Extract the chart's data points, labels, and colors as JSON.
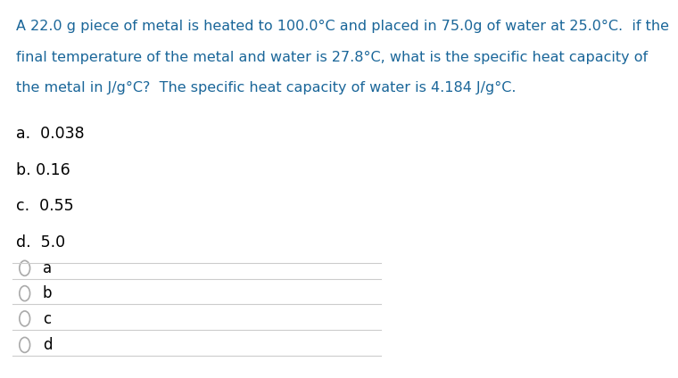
{
  "question_line1": "A 22.0 g piece of metal is heated to 100.0°C and placed in 75.0g of water at 25.0°C.  if the",
  "question_line2": "final temperature of the metal and water is 27.8°C, what is the specific heat capacity of",
  "question_line3": "the metal in J/g°C?  The specific heat capacity of water is 4.184 J/g°C.",
  "option_a": "a.  0.038",
  "option_b": "b. 0.16",
  "option_c": "c.  0.55",
  "option_d": "d.  5.0",
  "radio_options": [
    "a",
    "b",
    "c",
    "d"
  ],
  "question_color": "#1a6699",
  "option_color": "#000000",
  "radio_color": "#aaaaaa",
  "background_color": "#ffffff",
  "separator_color": "#cccccc",
  "font_size_question": 11.5,
  "font_size_options": 12.5,
  "font_size_radio": 12.0
}
